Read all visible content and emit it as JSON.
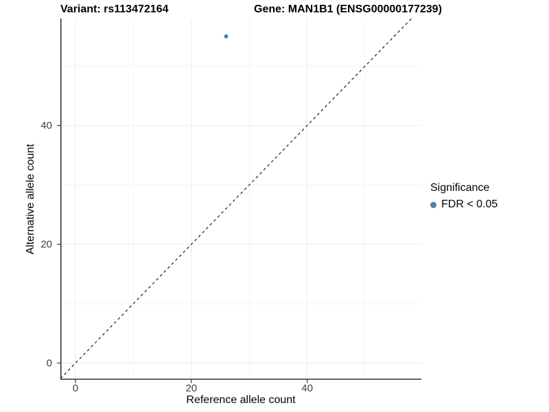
{
  "header": {
    "left_title": "Variant: rs113472164",
    "right_title": "Gene: MAN1B1 (ENSG00000177239)"
  },
  "axes": {
    "x_label": "Reference allele count",
    "y_label": "Alternative allele count"
  },
  "legend": {
    "title": "Significance",
    "entries": [
      {
        "label": "FDR < 0.05",
        "color": "#4e80b2"
      }
    ],
    "position": "right"
  },
  "chart_data": {
    "type": "scatter",
    "title": "Variant: rs113472164    Gene: MAN1B1 (ENSG00000177239)",
    "xlabel": "Reference allele count",
    "ylabel": "Alternative allele count",
    "x_ticks": [
      0,
      20,
      40
    ],
    "y_ticks": [
      0,
      20,
      40
    ],
    "x_minor_ticks": [
      10,
      30,
      50
    ],
    "y_minor_ticks": [
      10,
      30,
      50
    ],
    "xlim": [
      -2.6,
      59.7
    ],
    "ylim": [
      -2.8,
      58.0
    ],
    "grid": true,
    "series": [
      {
        "name": "FDR < 0.05",
        "color": "#4e80b2",
        "points": [
          {
            "x": 26,
            "y": 55
          }
        ]
      }
    ],
    "reference_line": {
      "type": "identity",
      "slope": 1,
      "intercept": 0,
      "style": "dashed",
      "color": "#1a1a1a"
    },
    "colors": {
      "grid_major": "#ebebeb",
      "grid_minor": "#f4f4f4",
      "axis_line": "#333333",
      "tick_mark": "#333333",
      "tick_text": "#404040"
    }
  }
}
